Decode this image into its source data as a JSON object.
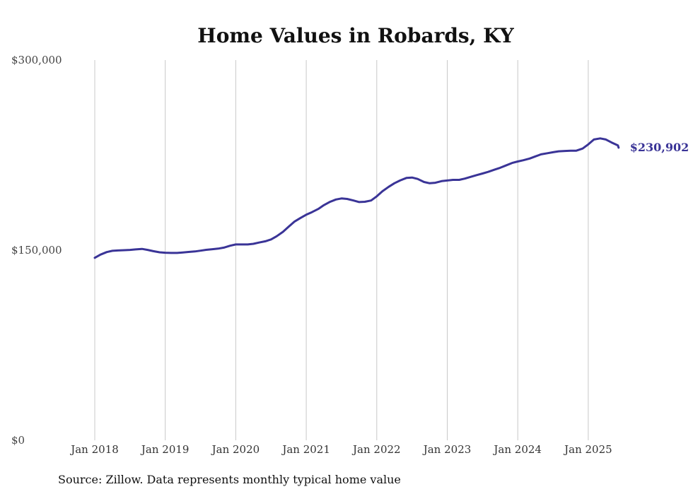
{
  "chart_data": {
    "type": "line",
    "title": "Home Values in Robards, KY",
    "source": "Source: Zillow. Data represents monthly typical home value",
    "xlabel": "",
    "ylabel": "",
    "ylim": [
      0,
      300000
    ],
    "yticks": [
      {
        "value": 0,
        "label": "$0"
      },
      {
        "value": 150000,
        "label": "$150,000"
      },
      {
        "value": 300000,
        "label": "$300,000"
      }
    ],
    "xticks": [
      {
        "value": 2018,
        "label": "Jan 2018"
      },
      {
        "value": 2019,
        "label": "Jan 2019"
      },
      {
        "value": 2020,
        "label": "Jan 2020"
      },
      {
        "value": 2021,
        "label": "Jan 2021"
      },
      {
        "value": 2022,
        "label": "Jan 2022"
      },
      {
        "value": 2023,
        "label": "Jan 2023"
      },
      {
        "value": 2024,
        "label": "Jan 2024"
      },
      {
        "value": 2025,
        "label": "Jan 2025"
      }
    ],
    "xlim": [
      2018,
      2025.5
    ],
    "grid": "vertical",
    "legend": "none",
    "line_color": "#3a3497",
    "end_label": "$230,902",
    "series": [
      {
        "points": [
          [
            2018.0,
            144000
          ],
          [
            2018.08,
            146500
          ],
          [
            2018.17,
            148500
          ],
          [
            2018.25,
            149500
          ],
          [
            2018.33,
            149800
          ],
          [
            2018.42,
            150000
          ],
          [
            2018.5,
            150200
          ],
          [
            2018.58,
            150600
          ],
          [
            2018.67,
            151000
          ],
          [
            2018.75,
            150200
          ],
          [
            2018.83,
            149200
          ],
          [
            2018.92,
            148300
          ],
          [
            2019.0,
            148000
          ],
          [
            2019.08,
            147800
          ],
          [
            2019.17,
            147800
          ],
          [
            2019.25,
            148200
          ],
          [
            2019.33,
            148600
          ],
          [
            2019.42,
            149000
          ],
          [
            2019.5,
            149600
          ],
          [
            2019.58,
            150300
          ],
          [
            2019.67,
            150800
          ],
          [
            2019.75,
            151200
          ],
          [
            2019.83,
            152000
          ],
          [
            2019.92,
            153500
          ],
          [
            2020.0,
            154500
          ],
          [
            2020.08,
            154500
          ],
          [
            2020.17,
            154500
          ],
          [
            2020.25,
            155000
          ],
          [
            2020.33,
            156000
          ],
          [
            2020.42,
            157000
          ],
          [
            2020.5,
            158500
          ],
          [
            2020.58,
            161000
          ],
          [
            2020.67,
            164500
          ],
          [
            2020.75,
            168500
          ],
          [
            2020.83,
            172500
          ],
          [
            2020.92,
            175500
          ],
          [
            2021.0,
            178000
          ],
          [
            2021.08,
            180000
          ],
          [
            2021.17,
            182500
          ],
          [
            2021.25,
            185500
          ],
          [
            2021.33,
            188000
          ],
          [
            2021.42,
            190000
          ],
          [
            2021.5,
            190800
          ],
          [
            2021.58,
            190400
          ],
          [
            2021.67,
            189200
          ],
          [
            2021.75,
            188000
          ],
          [
            2021.83,
            188200
          ],
          [
            2021.92,
            189200
          ],
          [
            2022.0,
            192500
          ],
          [
            2022.08,
            196500
          ],
          [
            2022.17,
            200000
          ],
          [
            2022.25,
            202800
          ],
          [
            2022.33,
            205000
          ],
          [
            2022.42,
            207000
          ],
          [
            2022.5,
            207300
          ],
          [
            2022.58,
            206200
          ],
          [
            2022.67,
            203800
          ],
          [
            2022.75,
            202800
          ],
          [
            2022.83,
            203200
          ],
          [
            2022.92,
            204500
          ],
          [
            2023.0,
            205000
          ],
          [
            2023.08,
            205500
          ],
          [
            2023.17,
            205500
          ],
          [
            2023.25,
            206500
          ],
          [
            2023.33,
            207800
          ],
          [
            2023.42,
            209300
          ],
          [
            2023.5,
            210500
          ],
          [
            2023.58,
            211800
          ],
          [
            2023.67,
            213500
          ],
          [
            2023.75,
            215000
          ],
          [
            2023.83,
            216800
          ],
          [
            2023.92,
            218800
          ],
          [
            2024.0,
            220000
          ],
          [
            2024.08,
            221000
          ],
          [
            2024.17,
            222300
          ],
          [
            2024.25,
            224000
          ],
          [
            2024.33,
            225600
          ],
          [
            2024.42,
            226500
          ],
          [
            2024.5,
            227300
          ],
          [
            2024.58,
            228000
          ],
          [
            2024.67,
            228300
          ],
          [
            2024.75,
            228500
          ],
          [
            2024.83,
            228500
          ],
          [
            2024.92,
            230200
          ],
          [
            2025.0,
            233500
          ],
          [
            2025.08,
            237300
          ],
          [
            2025.17,
            238200
          ],
          [
            2025.25,
            237300
          ],
          [
            2025.33,
            235000
          ],
          [
            2025.42,
            232700
          ],
          [
            2025.43,
            230902
          ]
        ]
      }
    ]
  }
}
